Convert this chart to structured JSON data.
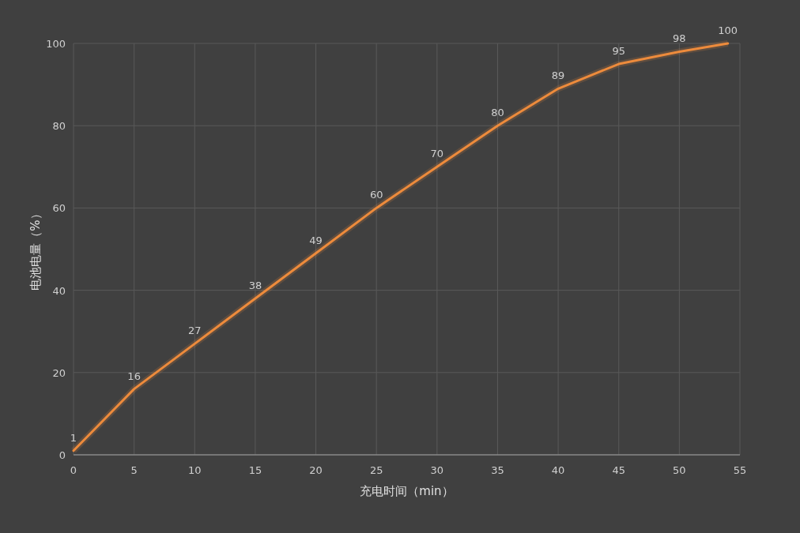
{
  "chart_data": {
    "type": "line",
    "xlabel": "充电时间（min）",
    "ylabel": "电池电量（%）",
    "x": [
      0,
      5,
      10,
      15,
      20,
      25,
      30,
      35,
      40,
      45,
      50,
      54
    ],
    "values": [
      1,
      16,
      27,
      38,
      49,
      60,
      70,
      80,
      89,
      95,
      98,
      100
    ],
    "color": "#ed8b3c",
    "xlim": [
      0,
      55
    ],
    "xticks": [
      0,
      5,
      10,
      15,
      20,
      25,
      30,
      35,
      40,
      45,
      50,
      55
    ],
    "ylim": [
      0,
      100
    ],
    "yticks": [
      0,
      20,
      40,
      60,
      80,
      100
    ],
    "grid": true,
    "data_labels": true
  }
}
